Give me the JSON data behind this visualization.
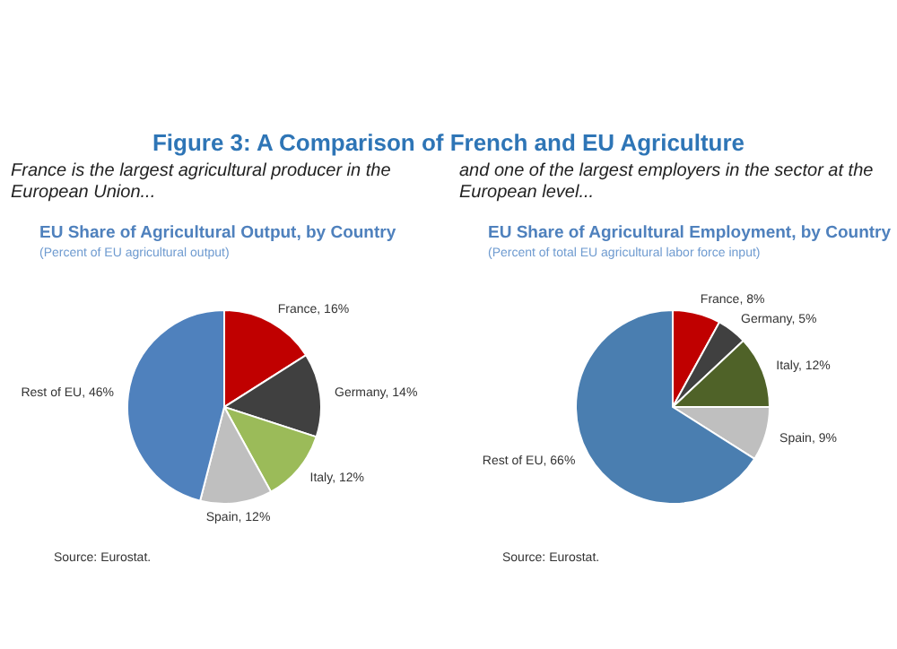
{
  "chart_data": [
    {
      "type": "pie",
      "title": "EU Share of Agricultural Output, by Country",
      "subtitle": "(Percent of EU agricultural output)",
      "annotations": [
        "Figure 3: A Comparison of French and EU Agriculture",
        "France is the largest agricultural producer in the European Union...",
        "Source: Eurostat."
      ],
      "categories": [
        "France",
        "Germany",
        "Italy",
        "Spain",
        "Rest of EU"
      ],
      "values": [
        16,
        14,
        12,
        12,
        46
      ],
      "value_labels": [
        "16%",
        "14%",
        "12%",
        "12%",
        "46%"
      ],
      "colors": [
        "#c00000",
        "#404040",
        "#9bbb59",
        "#bfbfbf",
        "#4f81bd"
      ]
    },
    {
      "type": "pie",
      "title": "EU Share of Agricultural Employment, by Country",
      "subtitle": "(Percent of total EU agricultural labor force input)",
      "annotations": [
        "and one of the largest employers in the sector at the European level...",
        "Source: Eurostat."
      ],
      "categories": [
        "France",
        "Germany",
        "Italy",
        "Spain",
        "Rest of EU"
      ],
      "values": [
        8,
        5,
        12,
        9,
        66
      ],
      "value_labels": [
        "8%",
        "5%",
        "12%",
        "9%",
        "66%"
      ],
      "colors": [
        "#c00000",
        "#404040",
        "#4f6228",
        "#bfbfbf",
        "#4a7eb0"
      ]
    }
  ]
}
